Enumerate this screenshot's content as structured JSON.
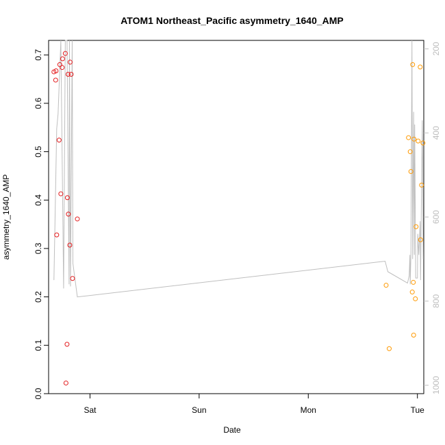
{
  "chart_data": {
    "type": "scatter",
    "title": "ATOM1 Northeast_Pacific asymmetry_1640_AMP",
    "xlabel": "Date",
    "ylabel": "asymmetry_1640_AMP",
    "x_ticks": [
      "Sat",
      "Sun",
      "Mon",
      "Tue"
    ],
    "x_ticks_hours": [
      24,
      48,
      72,
      96
    ],
    "xlim_hours": [
      14.9,
      97.4
    ],
    "ylim": [
      0,
      0.73
    ],
    "y_ticks": [
      0.0,
      0.1,
      0.2,
      0.3,
      0.4,
      0.5,
      0.6,
      0.7
    ],
    "y_tick_labels": [
      "0.0",
      "0.1",
      "0.2",
      "0.3",
      "0.4",
      "0.5",
      "0.6",
      "0.7"
    ],
    "y2lim": [
      1020,
      180
    ],
    "y2_ticks": [
      200,
      400,
      600,
      800,
      1000
    ],
    "y2_tick_labels": [
      "200",
      "400",
      "600",
      "800",
      "1000"
    ],
    "grid": false,
    "colors": {
      "series_red": "#e31a1c",
      "series_orange": "#ff9900",
      "line_gray": "#bebebe",
      "axis": "#000000"
    },
    "series": [
      {
        "color": "red",
        "marker": "open-circle",
        "points": [
          {
            "x_hours": 16.07,
            "y": 0.665
          },
          {
            "x_hours": 16.45,
            "y": 0.648
          },
          {
            "x_hours": 16.53,
            "y": 0.667
          },
          {
            "x_hours": 16.68,
            "y": 0.328
          },
          {
            "x_hours": 17.21,
            "y": 0.524
          },
          {
            "x_hours": 17.36,
            "y": 0.68
          },
          {
            "x_hours": 17.59,
            "y": 0.413
          },
          {
            "x_hours": 17.89,
            "y": 0.674
          },
          {
            "x_hours": 17.97,
            "y": 0.692
          },
          {
            "x_hours": 18.57,
            "y": 0.703
          },
          {
            "x_hours": 18.72,
            "y": 0.022
          },
          {
            "x_hours": 18.95,
            "y": 0.102
          },
          {
            "x_hours": 19.03,
            "y": 0.405
          },
          {
            "x_hours": 19.18,
            "y": 0.66
          },
          {
            "x_hours": 19.25,
            "y": 0.371
          },
          {
            "x_hours": 19.56,
            "y": 0.307
          },
          {
            "x_hours": 19.63,
            "y": 0.685
          },
          {
            "x_hours": 19.86,
            "y": 0.66
          },
          {
            "x_hours": 20.16,
            "y": 0.238
          },
          {
            "x_hours": 21.22,
            "y": 0.361
          }
        ]
      },
      {
        "color": "orange",
        "marker": "open-circle",
        "points": [
          {
            "x_hours": 89.12,
            "y": 0.224
          },
          {
            "x_hours": 89.8,
            "y": 0.093
          },
          {
            "x_hours": 94.04,
            "y": 0.529
          },
          {
            "x_hours": 94.42,
            "y": 0.5
          },
          {
            "x_hours": 94.57,
            "y": 0.459
          },
          {
            "x_hours": 94.87,
            "y": 0.21
          },
          {
            "x_hours": 94.95,
            "y": 0.68
          },
          {
            "x_hours": 95.1,
            "y": 0.23
          },
          {
            "x_hours": 95.17,
            "y": 0.121
          },
          {
            "x_hours": 95.25,
            "y": 0.526
          },
          {
            "x_hours": 95.55,
            "y": 0.196
          },
          {
            "x_hours": 95.7,
            "y": 0.345
          },
          {
            "x_hours": 96.16,
            "y": 0.522
          },
          {
            "x_hours": 96.61,
            "y": 0.675
          },
          {
            "x_hours": 96.69,
            "y": 0.318
          },
          {
            "x_hours": 96.91,
            "y": 0.431
          },
          {
            "x_hours": 97.22,
            "y": 0.518
          }
        ]
      }
    ],
    "line_series": {
      "color": "gray",
      "axis": "right",
      "points": [
        {
          "x_hours": 16.07,
          "y2": 750
        },
        {
          "x_hours": 16.68,
          "y2": 390
        },
        {
          "x_hours": 16.98,
          "y2": 355
        },
        {
          "x_hours": 17.59,
          "y2": 180
        },
        {
          "x_hours": 18.2,
          "y2": 770
        },
        {
          "x_hours": 18.57,
          "y2": 180
        },
        {
          "x_hours": 18.95,
          "y2": 180
        },
        {
          "x_hours": 19.4,
          "y2": 760
        },
        {
          "x_hours": 19.48,
          "y2": 180
        },
        {
          "x_hours": 19.71,
          "y2": 765
        },
        {
          "x_hours": 20.09,
          "y2": 180
        },
        {
          "x_hours": 20.24,
          "y2": 710
        },
        {
          "x_hours": 21.22,
          "y2": 790
        },
        {
          "x_hours": 88.9,
          "y2": 705
        },
        {
          "x_hours": 89.5,
          "y2": 730
        },
        {
          "x_hours": 93.82,
          "y2": 757
        },
        {
          "x_hours": 94.19,
          "y2": 740
        },
        {
          "x_hours": 94.35,
          "y2": 690
        },
        {
          "x_hours": 94.42,
          "y2": 760
        },
        {
          "x_hours": 94.57,
          "y2": 690
        },
        {
          "x_hours": 94.8,
          "y2": 180
        },
        {
          "x_hours": 94.95,
          "y2": 700
        },
        {
          "x_hours": 95.17,
          "y2": 350
        },
        {
          "x_hours": 95.32,
          "y2": 690
        },
        {
          "x_hours": 95.4,
          "y2": 380
        },
        {
          "x_hours": 95.62,
          "y2": 745
        },
        {
          "x_hours": 96.01,
          "y2": 745
        },
        {
          "x_hours": 96.08,
          "y2": 640
        },
        {
          "x_hours": 96.31,
          "y2": 690
        },
        {
          "x_hours": 96.61,
          "y2": 610
        },
        {
          "x_hours": 96.69,
          "y2": 750
        },
        {
          "x_hours": 97.07,
          "y2": 370
        },
        {
          "x_hours": 97.29,
          "y2": 700
        }
      ]
    }
  }
}
